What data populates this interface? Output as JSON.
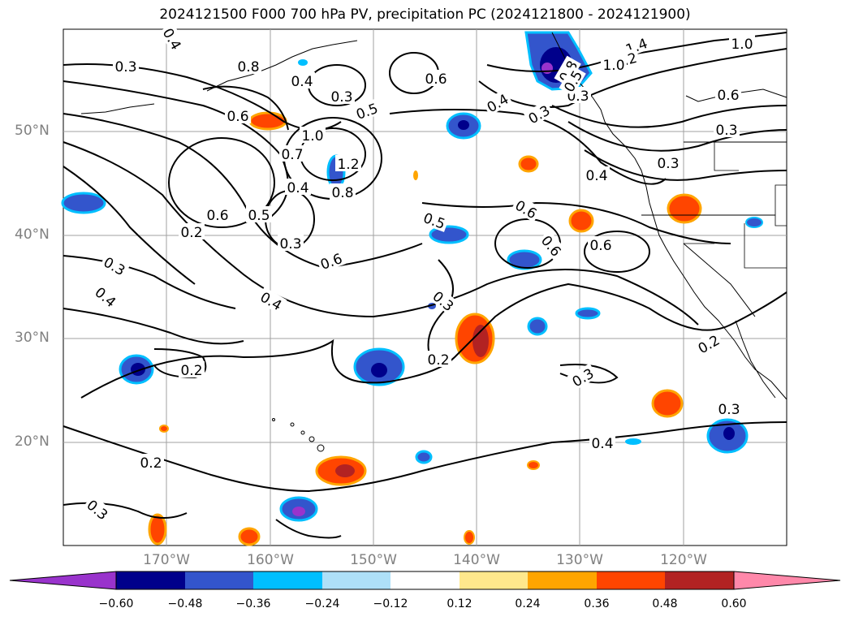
{
  "title": "2024121500 F000 700 hPa PV, precipitation PC (2024121800 - 2024121900)",
  "lat_labels": [
    "50°N",
    "40°N",
    "30°N",
    "20°N"
  ],
  "lon_labels": [
    "170°W",
    "160°W",
    "150°W",
    "140°W",
    "130°W",
    "120°W"
  ],
  "colorbar": {
    "ticks": [
      "−0.60",
      "−0.48",
      "−0.36",
      "−0.24",
      "−0.12",
      "0.12",
      "0.24",
      "0.36",
      "0.48",
      "0.60"
    ],
    "colors": [
      "#9933cc",
      "#00008b",
      "#3355cc",
      "#00bfff",
      "#aee0f8",
      "#ffffff",
      "#ffe88c",
      "#ffa500",
      "#ff4500",
      "#b22222",
      "#ff88aa"
    ],
    "extend": "both"
  },
  "contour_labels": [
    "0.3",
    "0.4",
    "0.8",
    "0.4",
    "0.3",
    "0.5",
    "0.6",
    "0.6",
    "1.0",
    "0.7",
    "1.2",
    "0.8",
    "0.4",
    "0.6",
    "0.5",
    "0.3",
    "0.2",
    "0.3",
    "0.4",
    "0.6",
    "0.4",
    "0.5",
    "0.6",
    "0.6",
    "0.3",
    "0.4",
    "0.3",
    "0.2",
    "0.2",
    "0.2",
    "0.3",
    "0.4",
    "0.3",
    "0.2",
    "1.4",
    "1.2",
    "1.0",
    "1.0",
    "0.6",
    "0.3",
    "0.3",
    "0.4",
    "0.6",
    "0.3",
    "0.8",
    "0.5",
    "0.3"
  ],
  "color_meaning": {
    "negative": "blue/purple shaded precipitation PC",
    "positive": "orange/red shaded precipitation PC"
  }
}
